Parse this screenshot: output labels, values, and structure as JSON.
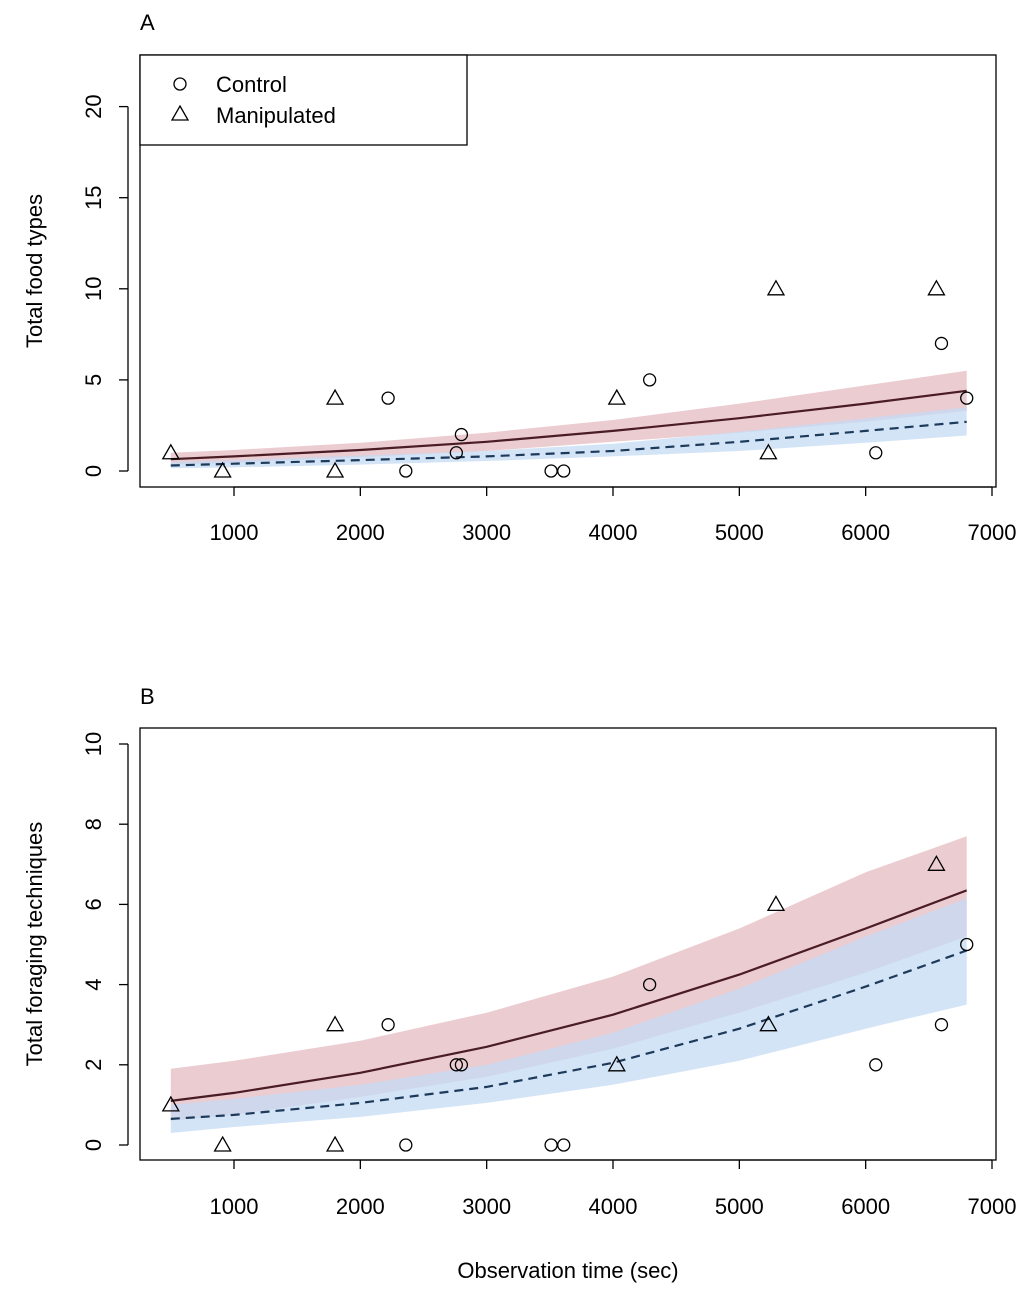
{
  "chart_data": [
    {
      "type": "scatter",
      "panel_label": "A",
      "ylabel": "Total food types",
      "xlabel": "",
      "xlim": [
        500,
        6800
      ],
      "ylim": [
        0,
        22
      ],
      "x_ticks": [
        "1000",
        "2000",
        "3000",
        "4000",
        "5000",
        "6000",
        "7000"
      ],
      "y_ticks": [
        "0",
        "5",
        "10",
        "15",
        "20"
      ],
      "legend": {
        "position": "top-left",
        "entries": [
          {
            "label": "Control",
            "marker": "circle"
          },
          {
            "label": "Manipulated",
            "marker": "triangle"
          }
        ]
      },
      "colors": {
        "red_band": "#e8c3c9",
        "blue_band": "#c6dbf4",
        "overlap_band": "#c4b6d1",
        "red_line": "#4a1c23",
        "blue_line": "#1d3a5a"
      },
      "series": [
        {
          "name": "Control",
          "marker": "circle",
          "points": [
            [
              2220,
              4
            ],
            [
              2360,
              0
            ],
            [
              2760,
              1
            ],
            [
              2800,
              2
            ],
            [
              3510,
              0
            ],
            [
              3610,
              0
            ],
            [
              4290,
              5
            ],
            [
              6080,
              1
            ],
            [
              6600,
              7
            ],
            [
              6800,
              4
            ]
          ]
        },
        {
          "name": "Manipulated",
          "marker": "triangle",
          "points": [
            [
              500,
              1
            ],
            [
              910,
              0
            ],
            [
              1800,
              4
            ],
            [
              1800,
              0
            ],
            [
              4030,
              4
            ],
            [
              5230,
              1
            ],
            [
              5290,
              10
            ],
            [
              6560,
              10
            ]
          ]
        }
      ],
      "fits": [
        {
          "style": "solid",
          "color": "red",
          "x": [
            500,
            1000,
            2000,
            3000,
            4000,
            5000,
            6000,
            6800
          ],
          "y": [
            0.65,
            0.8,
            1.15,
            1.6,
            2.2,
            2.9,
            3.7,
            4.4
          ],
          "lower": [
            0.35,
            0.45,
            0.75,
            1.1,
            1.6,
            2.1,
            2.7,
            3.3
          ],
          "upper": [
            1.0,
            1.15,
            1.55,
            2.1,
            2.8,
            3.7,
            4.7,
            5.5
          ]
        },
        {
          "style": "dashed",
          "color": "blue",
          "x": [
            500,
            1000,
            2000,
            3000,
            4000,
            5000,
            6000,
            6800
          ],
          "y": [
            0.3,
            0.4,
            0.6,
            0.8,
            1.1,
            1.6,
            2.2,
            2.7
          ],
          "lower": [
            0.15,
            0.2,
            0.35,
            0.55,
            0.8,
            1.1,
            1.55,
            1.95
          ],
          "upper": [
            0.5,
            0.6,
            0.85,
            1.1,
            1.5,
            2.15,
            2.9,
            3.5
          ]
        }
      ]
    },
    {
      "type": "scatter",
      "panel_label": "B",
      "ylabel": "Total foraging techniques",
      "xlabel": "Observation time (sec)",
      "xlim": [
        500,
        6800
      ],
      "ylim": [
        0,
        10
      ],
      "x_ticks": [
        "1000",
        "2000",
        "3000",
        "4000",
        "5000",
        "6000",
        "7000"
      ],
      "y_ticks": [
        "0",
        "2",
        "4",
        "6",
        "8",
        "10"
      ],
      "series": [
        {
          "name": "Control",
          "marker": "circle",
          "points": [
            [
              2220,
              3
            ],
            [
              2360,
              0
            ],
            [
              2760,
              2
            ],
            [
              2800,
              2
            ],
            [
              3510,
              0
            ],
            [
              3610,
              0
            ],
            [
              4290,
              4
            ],
            [
              6080,
              2
            ],
            [
              6600,
              3
            ],
            [
              6800,
              5
            ]
          ]
        },
        {
          "name": "Manipulated",
          "marker": "triangle",
          "points": [
            [
              500,
              1
            ],
            [
              910,
              0
            ],
            [
              1800,
              3
            ],
            [
              1800,
              0
            ],
            [
              4030,
              2
            ],
            [
              5230,
              3
            ],
            [
              5290,
              6
            ],
            [
              6560,
              7
            ]
          ]
        }
      ],
      "fits": [
        {
          "style": "solid",
          "color": "red",
          "x": [
            500,
            1000,
            2000,
            3000,
            4000,
            5000,
            6000,
            6800
          ],
          "y": [
            1.1,
            1.3,
            1.8,
            2.45,
            3.25,
            4.25,
            5.4,
            6.35
          ],
          "lower": [
            0.6,
            0.75,
            1.2,
            1.7,
            2.4,
            3.3,
            4.3,
            5.2
          ],
          "upper": [
            1.9,
            2.1,
            2.6,
            3.3,
            4.2,
            5.4,
            6.8,
            7.7
          ]
        },
        {
          "style": "dashed",
          "color": "blue",
          "x": [
            500,
            1000,
            2000,
            3000,
            4000,
            5000,
            6000,
            6800
          ],
          "y": [
            0.65,
            0.75,
            1.05,
            1.45,
            2.05,
            2.9,
            3.95,
            4.85
          ],
          "lower": [
            0.3,
            0.45,
            0.7,
            1.05,
            1.5,
            2.1,
            2.9,
            3.5
          ],
          "upper": [
            1.0,
            1.15,
            1.5,
            2.0,
            2.8,
            3.9,
            5.2,
            6.15
          ]
        }
      ]
    }
  ]
}
